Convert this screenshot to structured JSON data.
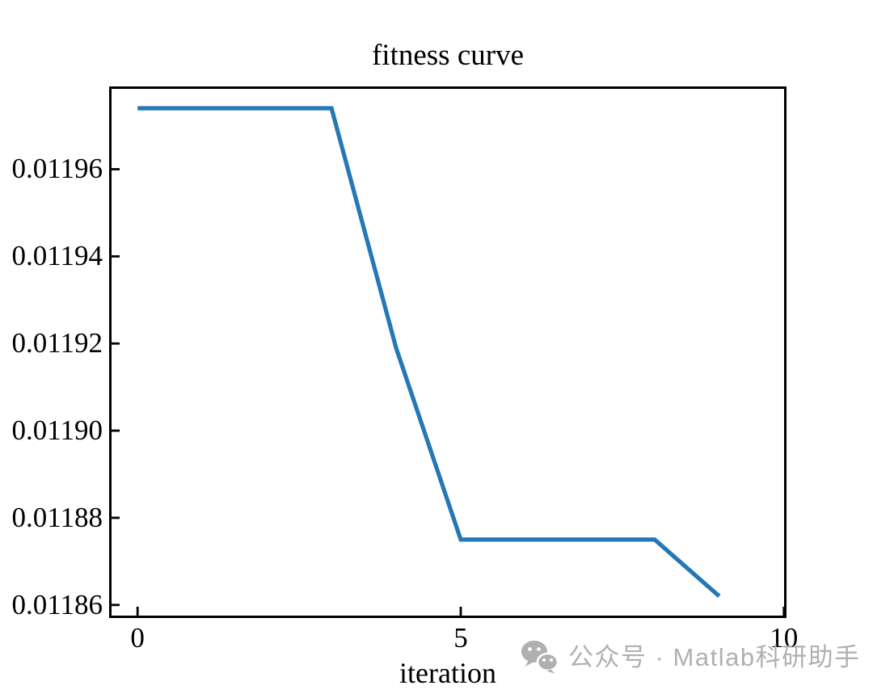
{
  "figure": {
    "background": "#ffffff",
    "axis_color": "#000000"
  },
  "watermark": {
    "icon": "wechat-icon",
    "text": "公众号 · Matlab科研助手",
    "color": "#b1b0ae"
  },
  "chart_data": {
    "type": "line",
    "title": "fitness curve",
    "xlabel": "iteration",
    "ylabel": "",
    "x": [
      0,
      1,
      2,
      3,
      4,
      5,
      6,
      7,
      8,
      9
    ],
    "y": [
      0.011974,
      0.011974,
      0.011974,
      0.011974,
      0.011919,
      0.011875,
      0.011875,
      0.011875,
      0.011875,
      0.011862
    ],
    "xlim": [
      -0.44,
      10.04
    ],
    "ylim": [
      0.011857,
      0.011979
    ],
    "xticks": [
      0,
      5,
      10
    ],
    "xtick_labels": [
      "0",
      "5",
      "10"
    ],
    "yticks": [
      0.01196,
      0.01194,
      0.01192,
      0.0119,
      0.01188,
      0.01186
    ],
    "ytick_labels": [
      "0.01196",
      "0.01194",
      "0.01192",
      "0.01190",
      "0.01188",
      "0.01186"
    ],
    "line_color": "#2478b6",
    "line_width": 5.2,
    "grid": false,
    "legend": null,
    "tick_direction": "in"
  }
}
